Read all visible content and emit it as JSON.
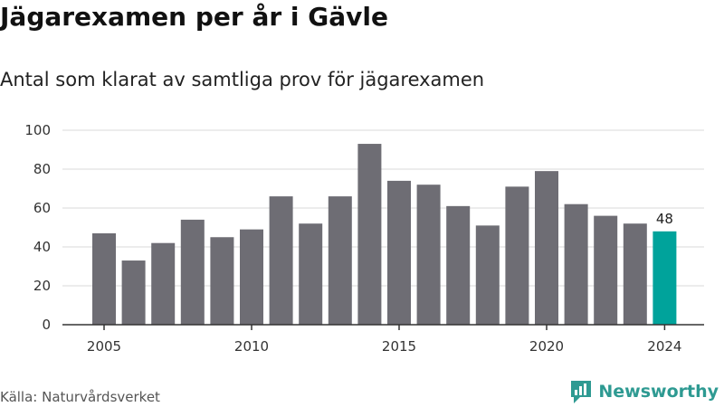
{
  "header": {
    "title": "Jägarexamen per år i Gävle",
    "subtitle": "Antal som klarat av samtliga prov för jägarexamen"
  },
  "footer": {
    "source": "Källa: Naturvårdsverket",
    "brand": "Newsworthy",
    "brand_icon": "newsworthy-logo-icon"
  },
  "colors": {
    "bar": "#6e6d74",
    "highlight": "#00a39b",
    "grid": "#d9d9d9",
    "axis": "#333333",
    "brand": "#2e9a92"
  },
  "chart_data": {
    "type": "bar",
    "title": "Jägarexamen per år i Gävle",
    "subtitle": "Antal som klarat av samtliga prov för jägarexamen",
    "xlabel": "",
    "ylabel": "",
    "categories": [
      2005,
      2006,
      2007,
      2008,
      2009,
      2010,
      2011,
      2012,
      2013,
      2014,
      2015,
      2016,
      2017,
      2018,
      2019,
      2020,
      2021,
      2022,
      2023,
      2024
    ],
    "values": [
      47,
      33,
      42,
      54,
      45,
      49,
      66,
      52,
      66,
      93,
      74,
      72,
      61,
      51,
      71,
      79,
      62,
      56,
      52,
      48
    ],
    "ylim": [
      0,
      100
    ],
    "yticks": [
      0,
      20,
      40,
      60,
      80,
      100
    ],
    "xticks": [
      2005,
      2010,
      2015,
      2020,
      2024
    ],
    "grid": true,
    "highlight": {
      "category": 2024,
      "label": "48"
    }
  }
}
